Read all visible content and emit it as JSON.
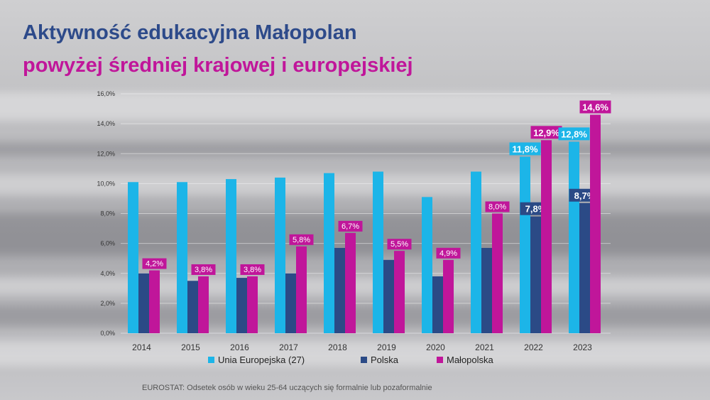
{
  "title_line1": "Aktywność edukacyjna Małopolan",
  "title_line2": "powyżej średniej krajowej i europejskiej",
  "source": "EUROSTAT: Odsetek osób w wieku 25-64 uczących się formalnie lub pozaformalnie",
  "colors": {
    "eu": "#1cb5e8",
    "pl": "#2b4a86",
    "mp": "#c0169a"
  },
  "chart_data": {
    "type": "bar",
    "categories": [
      "2014",
      "2015",
      "2016",
      "2017",
      "2018",
      "2019",
      "2020",
      "2021",
      "2022",
      "2023"
    ],
    "ylim": [
      0,
      16
    ],
    "yticks": [
      "0,0%",
      "2,0%",
      "4,0%",
      "6,0%",
      "8,0%",
      "10,0%",
      "12,0%",
      "14,0%",
      "16,0%"
    ],
    "legend_position": "bottom",
    "series": [
      {
        "name": "Unia Europejska (27)",
        "values": [
          10.1,
          10.1,
          10.3,
          10.4,
          10.7,
          10.8,
          9.1,
          10.8,
          11.8,
          12.8
        ],
        "labels": [
          "",
          "",
          "",
          "",
          "",
          "",
          "",
          "",
          "11,8%",
          "12,8%"
        ]
      },
      {
        "name": "Polska",
        "values": [
          4.0,
          3.5,
          3.7,
          4.0,
          5.7,
          4.9,
          3.8,
          5.7,
          7.8,
          8.7
        ],
        "labels": [
          "",
          "",
          "",
          "",
          "",
          "",
          "",
          "",
          "7,8%",
          "8,7%"
        ]
      },
      {
        "name": "Małopolska",
        "values": [
          4.2,
          3.8,
          3.8,
          5.8,
          6.7,
          5.5,
          4.9,
          8.0,
          12.9,
          14.6
        ],
        "labels": [
          "4,2%",
          "3,8%",
          "3,8%",
          "5,8%",
          "6,7%",
          "5,5%",
          "4,9%",
          "8,0%",
          "12,9%",
          "14,6%"
        ]
      }
    ]
  }
}
